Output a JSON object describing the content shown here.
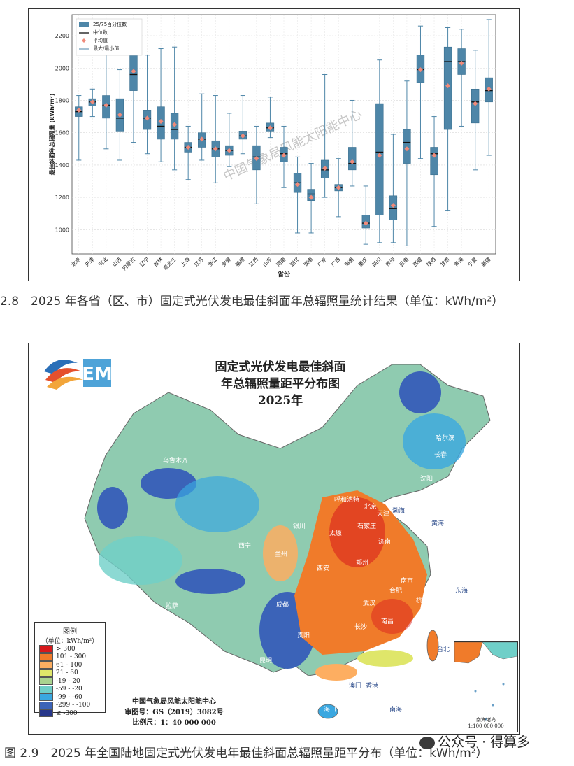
{
  "chart_data": {
    "type": "box",
    "xlabel": "省份",
    "ylabel": "最佳斜面年总辐照量 (kWh/m²)",
    "ylim": [
      850,
      2330
    ],
    "yticks": [
      1000,
      1200,
      1400,
      1600,
      1800,
      2000,
      2200
    ],
    "grid": true,
    "legend_placement": "top-left",
    "legend": [
      "25/75百分位数",
      "中位数",
      "平均值",
      "最大/最小值"
    ],
    "watermark": "中国气象局风能太阳能中心",
    "colors": {
      "box": "#4e86a8",
      "median": "#111111",
      "mean": "#f08a7a",
      "whisker": "#4e86a8"
    },
    "categories": [
      "北京",
      "天津",
      "河北",
      "山西",
      "内蒙古",
      "辽宁",
      "吉林",
      "黑龙江",
      "上海",
      "江苏",
      "浙江",
      "安徽",
      "福建",
      "江西",
      "山东",
      "河南",
      "湖北",
      "湖南",
      "广东",
      "广西",
      "海南",
      "重庆",
      "四川",
      "贵州",
      "云南",
      "西藏",
      "陕西",
      "甘肃",
      "青海",
      "宁夏",
      "新疆"
    ],
    "series": [
      {
        "min": 1430,
        "q1": 1700,
        "median": 1730,
        "q3": 1760,
        "max": 1830,
        "mean": 1740
      },
      {
        "min": 1700,
        "q1": 1765,
        "median": 1790,
        "q3": 1810,
        "max": 1870,
        "mean": 1790
      },
      {
        "min": 1500,
        "q1": 1690,
        "median": 1770,
        "q3": 1830,
        "max": 2130,
        "mean": 1770
      },
      {
        "min": 1430,
        "q1": 1610,
        "median": 1690,
        "q3": 1810,
        "max": 1990,
        "mean": 1710
      },
      {
        "min": 1540,
        "q1": 1860,
        "median": 1960,
        "q3": 2130,
        "max": 2270,
        "mean": 1980
      },
      {
        "min": 1470,
        "q1": 1620,
        "median": 1690,
        "q3": 1740,
        "max": 2080,
        "mean": 1690
      },
      {
        "min": 1420,
        "q1": 1560,
        "median": 1640,
        "q3": 1760,
        "max": 2120,
        "mean": 1670
      },
      {
        "min": 1370,
        "q1": 1560,
        "median": 1620,
        "q3": 1720,
        "max": 2130,
        "mean": 1650
      },
      {
        "min": 1310,
        "q1": 1480,
        "median": 1510,
        "q3": 1540,
        "max": 1640,
        "mean": 1510
      },
      {
        "min": 1430,
        "q1": 1510,
        "median": 1560,
        "q3": 1600,
        "max": 1840,
        "mean": 1560
      },
      {
        "min": 1290,
        "q1": 1450,
        "median": 1500,
        "q3": 1550,
        "max": 1830,
        "mean": 1500
      },
      {
        "min": 1390,
        "q1": 1460,
        "median": 1490,
        "q3": 1520,
        "max": 1720,
        "mean": 1490
      },
      {
        "min": 1470,
        "q1": 1560,
        "median": 1580,
        "q3": 1610,
        "max": 1830,
        "mean": 1580
      },
      {
        "min": 1160,
        "q1": 1370,
        "median": 1450,
        "q3": 1520,
        "max": 1640,
        "mean": 1440
      },
      {
        "min": 1570,
        "q1": 1610,
        "median": 1630,
        "q3": 1660,
        "max": 1820,
        "mean": 1630
      },
      {
        "min": 1260,
        "q1": 1420,
        "median": 1470,
        "q3": 1510,
        "max": 1640,
        "mean": 1460
      },
      {
        "min": 980,
        "q1": 1230,
        "median": 1290,
        "q3": 1350,
        "max": 1450,
        "mean": 1280
      },
      {
        "min": 980,
        "q1": 1180,
        "median": 1220,
        "q3": 1250,
        "max": 1410,
        "mean": 1200
      },
      {
        "min": 1200,
        "q1": 1320,
        "median": 1370,
        "q3": 1430,
        "max": 1960,
        "mean": 1380
      },
      {
        "min": 1080,
        "q1": 1240,
        "median": 1260,
        "q3": 1280,
        "max": 1440,
        "mean": 1260
      },
      {
        "min": 1270,
        "q1": 1370,
        "median": 1410,
        "q3": 1510,
        "max": 1800,
        "mean": 1420
      },
      {
        "min": 910,
        "q1": 1010,
        "median": 1040,
        "q3": 1090,
        "max": 1270,
        "mean": 1040
      },
      {
        "min": 920,
        "q1": 1090,
        "median": 1480,
        "q3": 1780,
        "max": 2050,
        "mean": 1460
      },
      {
        "min": 920,
        "q1": 1060,
        "median": 1130,
        "q3": 1210,
        "max": 1590,
        "mean": 1150
      },
      {
        "min": 900,
        "q1": 1410,
        "median": 1540,
        "q3": 1620,
        "max": 1920,
        "mean": 1500
      },
      {
        "min": 1440,
        "q1": 1910,
        "median": 1990,
        "q3": 2080,
        "max": 2260,
        "mean": 1990
      },
      {
        "min": 1020,
        "q1": 1340,
        "median": 1470,
        "q3": 1510,
        "max": 1700,
        "mean": 1460
      },
      {
        "min": 1120,
        "q1": 1620,
        "median": 2040,
        "q3": 2130,
        "max": 2250,
        "mean": 1890
      },
      {
        "min": 1640,
        "q1": 1960,
        "median": 2040,
        "q3": 2120,
        "max": 2240,
        "mean": 2030
      },
      {
        "min": 1370,
        "q1": 1660,
        "median": 1790,
        "q3": 1870,
        "max": 2110,
        "mean": 1780
      },
      {
        "min": 1460,
        "q1": 1790,
        "median": 1860,
        "q3": 1940,
        "max": 2300,
        "mean": 1870
      }
    ]
  },
  "captions": {
    "fig28": "2.8　2025 年各省（区、市）固定式光伏发电最佳斜面年总辐照量统计结果（单位：kWh/m²）",
    "fig29": "图 2.9　2025 年全国陆地固定式光伏发电年最佳斜面总辐照量距平分布（单位：kWh/m²）"
  },
  "map": {
    "title_lines": [
      "固定式光伏发电最佳斜面",
      "年总辐照量距平分布图",
      "2025年"
    ],
    "legend_title": "图例",
    "legend_unit": "（单位：kWh/m²）",
    "legend_items": [
      {
        "label": "> 300",
        "color": "#d7191c"
      },
      {
        "label": "101 - 300",
        "color": "#f07b2a"
      },
      {
        "label": "61 - 100",
        "color": "#fdae61"
      },
      {
        "label": "21 - 60",
        "color": "#dfe66a"
      },
      {
        "label": "-19 - 20",
        "color": "#a9d38f"
      },
      {
        "label": "-59 - -20",
        "color": "#6fcfc8"
      },
      {
        "label": "-99 - -60",
        "color": "#3aa7e0"
      },
      {
        "label": "-299 - -100",
        "color": "#3b63b8"
      },
      {
        "label": "≤ -300",
        "color": "#27378a"
      }
    ],
    "footer": [
      "中国气象局风能太阳能中心",
      "审图号：GS（2019）3082号",
      "比例尺：1：40 000 000"
    ],
    "inset_label": "南海诸岛",
    "inset_scale": "1:100 000 000",
    "cities": [
      "乌鲁木齐",
      "哈尔滨",
      "长春",
      "沈阳",
      "呼和浩特",
      "北京",
      "天津",
      "石家庄",
      "太原",
      "银川",
      "济南",
      "西宁",
      "兰州",
      "郑州",
      "西安",
      "南京",
      "合肥",
      "上海",
      "杭州",
      "成都",
      "武汉",
      "长沙",
      "南昌",
      "福州",
      "贵阳",
      "昆明",
      "南宁",
      "广州",
      "台北",
      "香港",
      "澳门",
      "海口",
      "拉萨"
    ],
    "seas": [
      "渤海",
      "黄海",
      "东海",
      "南海"
    ]
  },
  "watermark": "公众号 · 得算多"
}
